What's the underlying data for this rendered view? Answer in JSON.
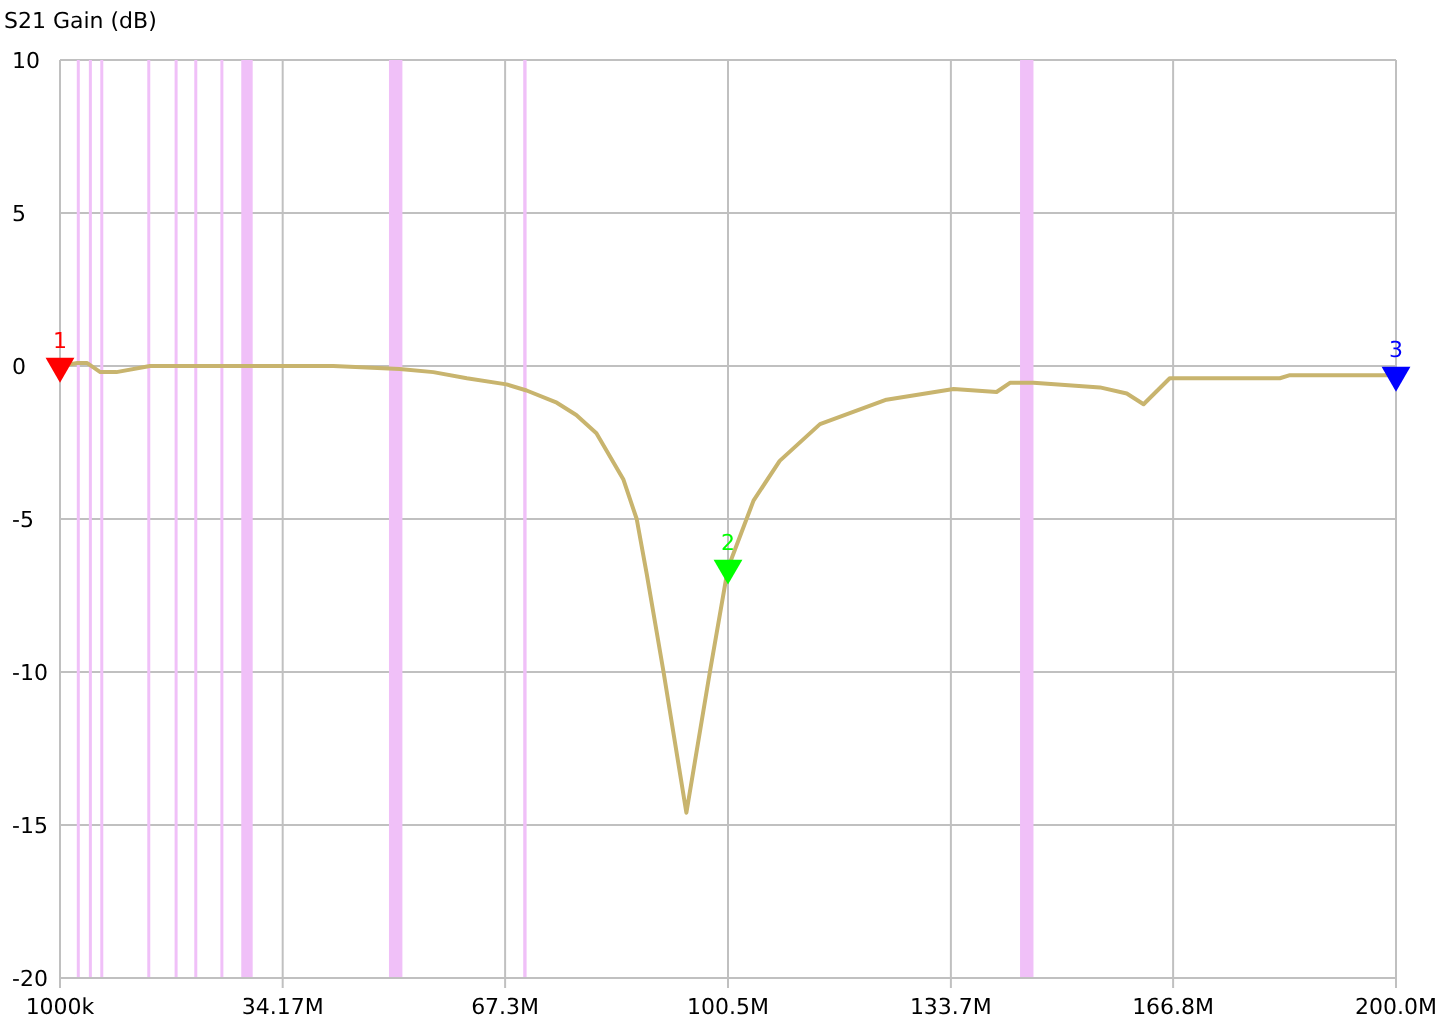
{
  "chart_data": {
    "type": "line",
    "ylabel": "S21 Gain (dB)",
    "xlim": [
      1000000,
      200000000
    ],
    "ylim": [
      -20,
      10
    ],
    "xticks": [
      {
        "value": 1000000,
        "label": "1000k"
      },
      {
        "value": 34170000,
        "label": "34.17M"
      },
      {
        "value": 67300000,
        "label": "67.3M"
      },
      {
        "value": 100500000,
        "label": "100.5M"
      },
      {
        "value": 133700000,
        "label": "133.7M"
      },
      {
        "value": 166800000,
        "label": "166.8M"
      },
      {
        "value": 200000000,
        "label": "200.0M"
      }
    ],
    "yticks": [
      -20,
      -15,
      -10,
      -5,
      0,
      5,
      10
    ],
    "grid": true,
    "legend": false,
    "bands": [
      {
        "axis": "x",
        "from": 3500000,
        "to": 3600000,
        "color": "#f0c0f8"
      },
      {
        "axis": "x",
        "from": 5300000,
        "to": 5400000,
        "color": "#f0c0f8"
      },
      {
        "axis": "x",
        "from": 7000000,
        "to": 7200000,
        "color": "#f0c0f8"
      },
      {
        "axis": "x",
        "from": 14000000,
        "to": 14350000,
        "color": "#f0c0f8"
      },
      {
        "axis": "x",
        "from": 18070000,
        "to": 18170000,
        "color": "#f0c0f8"
      },
      {
        "axis": "x",
        "from": 21000000,
        "to": 21450000,
        "color": "#f0c0f8"
      },
      {
        "axis": "x",
        "from": 24890000,
        "to": 24990000,
        "color": "#f0c0f8"
      },
      {
        "axis": "x",
        "from": 28000000,
        "to": 29700000,
        "color": "#f0c0f8"
      },
      {
        "axis": "x",
        "from": 50000000,
        "to": 52000000,
        "color": "#f0c0f8"
      },
      {
        "axis": "x",
        "from": 70000000,
        "to": 70500000,
        "color": "#f0c0f8"
      },
      {
        "axis": "x",
        "from": 144000000,
        "to": 146000000,
        "color": "#f0c0f8"
      }
    ],
    "series": [
      {
        "type": "line",
        "color": "#c8b46e",
        "marker": "none",
        "line_style": "solid",
        "x": [
          1000000,
          3600000,
          5000000,
          7000000,
          9400000,
          14400000,
          41700000,
          51600000,
          56600000,
          61600000,
          67500000,
          70500000,
          75000000,
          77900000,
          80900000,
          84900000,
          86900000,
          88400000,
          90900000,
          94300000,
          97800000,
          100500000,
          104300000,
          108200000,
          114200000,
          124100000,
          134100000,
          140500000,
          142500000,
          146000000,
          155900000,
          159900000,
          162400000,
          166300000,
          182700000,
          184200000,
          197600000,
          200000000
        ],
        "values": [
          0.0,
          0.1,
          0.1,
          -0.2,
          -0.2,
          0.0,
          0.0,
          -0.1,
          -0.2,
          -0.4,
          -0.6,
          -0.8,
          -1.2,
          -1.6,
          -2.2,
          -3.7,
          -5.0,
          -6.8,
          -10.0,
          -14.6,
          -10.0,
          -6.6,
          -4.4,
          -3.1,
          -1.9,
          -1.1,
          -0.75,
          -0.85,
          -0.55,
          -0.55,
          -0.7,
          -0.9,
          -1.25,
          -0.4,
          -0.4,
          -0.3,
          -0.3,
          -0.3
        ]
      },
      {
        "type": "scatter",
        "name": "1",
        "color": "#ff0000",
        "marker": "triangle",
        "x": [
          1000000
        ],
        "values": [
          0.0
        ]
      },
      {
        "type": "scatter",
        "name": "2",
        "color": "#00ff00",
        "marker": "triangle",
        "x": [
          100500000
        ],
        "values": [
          -6.6
        ]
      },
      {
        "type": "scatter",
        "name": "3",
        "color": "#0000ff",
        "marker": "triangle",
        "x": [
          200000000
        ],
        "values": [
          -0.3
        ]
      }
    ]
  }
}
